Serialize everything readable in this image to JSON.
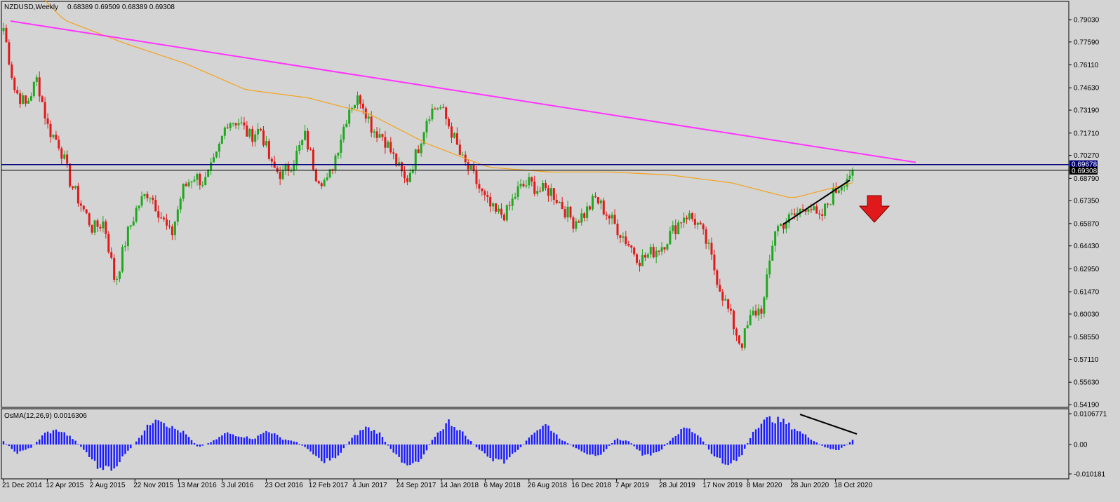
{
  "header": {
    "symbol_label": "NZDUSD,Weekly",
    "ohlc_label": "0.68389 0.69509 0.68389 0.69308"
  },
  "osma_header": {
    "label": "OsMA(12,26,9) 0.0016306"
  },
  "colors": {
    "background": "#d4d4d4",
    "bull": "#1ea81e",
    "bear": "#e01a1a",
    "ma": "#f4a21c",
    "trendline": "#ff33ff",
    "resistance": "#00007a",
    "price_line": "#000000",
    "histogram": "#1a1aff",
    "arrow": "#e01a1a"
  },
  "chart_data": [
    {
      "type": "candlestick",
      "symbol": "NZDUSD",
      "timeframe": "Weekly",
      "last_close": 0.69308,
      "ylim": [
        0.5419,
        0.8019
      ],
      "y_ticks": [
        "0.79030",
        "0.77590",
        "0.76110",
        "0.74630",
        "0.73190",
        "0.71710",
        "0.70270",
        "0.68790",
        "0.67350",
        "0.65870",
        "0.64430",
        "0.62950",
        "0.61470",
        "0.60030",
        "0.58550",
        "0.57110",
        "0.55630",
        "0.54190"
      ],
      "price_badges": [
        "0.69678",
        "0.69308"
      ],
      "x_ticks": [
        "21 Dec 2014",
        "12 Apr 2015",
        "2 Aug 2015",
        "22 Nov 2015",
        "13 Mar 2016",
        "3 Jul 2016",
        "23 Oct 2016",
        "12 Feb 2017",
        "4 Jun 2017",
        "24 Sep 2017",
        "14 Jan 2018",
        "6 May 2018",
        "26 Aug 2018",
        "16 Dec 2018",
        "7 Apr 2019",
        "28 Jul 2019",
        "17 Nov 2019",
        "8 Mar 2020",
        "28 Jun 2020",
        "18 Oct 2020"
      ],
      "close_anchors": [
        0.785,
        0.745,
        0.735,
        0.752,
        0.72,
        0.71,
        0.685,
        0.67,
        0.655,
        0.66,
        0.62,
        0.65,
        0.67,
        0.68,
        0.665,
        0.65,
        0.68,
        0.69,
        0.685,
        0.7,
        0.725,
        0.725,
        0.715,
        0.72,
        0.695,
        0.69,
        0.7,
        0.715,
        0.69,
        0.685,
        0.71,
        0.735,
        0.74,
        0.72,
        0.715,
        0.7,
        0.685,
        0.705,
        0.73,
        0.735,
        0.72,
        0.7,
        0.69,
        0.675,
        0.665,
        0.665,
        0.68,
        0.685,
        0.68,
        0.68,
        0.67,
        0.66,
        0.665,
        0.675,
        0.665,
        0.655,
        0.645,
        0.635,
        0.64,
        0.645,
        0.655,
        0.665,
        0.66,
        0.645,
        0.62,
        0.6,
        0.58,
        0.6,
        0.605,
        0.655,
        0.66,
        0.665,
        0.672,
        0.66,
        0.675,
        0.685,
        0.6931
      ],
      "series": [
        {
          "name": "Resistance level",
          "value": 0.69678
        },
        {
          "name": "Price line",
          "value": 0.69308
        }
      ],
      "trendline_points": [
        [
          0.789,
          0.78939
        ],
        [
          0.7,
          0.6982
        ]
      ],
      "ma_anchors": [
        0.83,
        0.79,
        0.775,
        0.762,
        0.745,
        0.74,
        0.73,
        0.71,
        0.695,
        0.692,
        0.692,
        0.69,
        0.685,
        0.675,
        0.685
      ]
    },
    {
      "type": "histogram",
      "name": "OsMA(12,26,9)",
      "last_value": 0.0016306,
      "ylim": [
        -0.0102,
        0.0108
      ],
      "y_ticks": [
        "0.0106771",
        "0.00",
        "-0.010181"
      ],
      "value_anchors": [
        0.001,
        -0.003,
        -0.001,
        0.004,
        0.005,
        0.002,
        -0.003,
        -0.009,
        -0.008,
        -0.002,
        0.004,
        0.01,
        0.006,
        0.004,
        -0.001,
        0.001,
        0.004,
        0.003,
        0.002,
        0.005,
        0.002,
        0.001,
        -0.002,
        -0.006,
        -0.004,
        0.002,
        0.006,
        0.004,
        -0.003,
        -0.007,
        -0.005,
        0.003,
        0.008,
        0.004,
        -0.001,
        -0.005,
        -0.006,
        -0.002,
        0.004,
        0.007,
        0.002,
        -0.001,
        -0.004,
        -0.003,
        0.002,
        0.001,
        -0.004,
        -0.003,
        0.002,
        0.006,
        0.003,
        -0.004,
        -0.007,
        -0.004,
        0.006,
        0.009,
        0.008,
        0.005,
        0.002,
        -0.001,
        -0.002,
        0.0016
      ]
    }
  ]
}
